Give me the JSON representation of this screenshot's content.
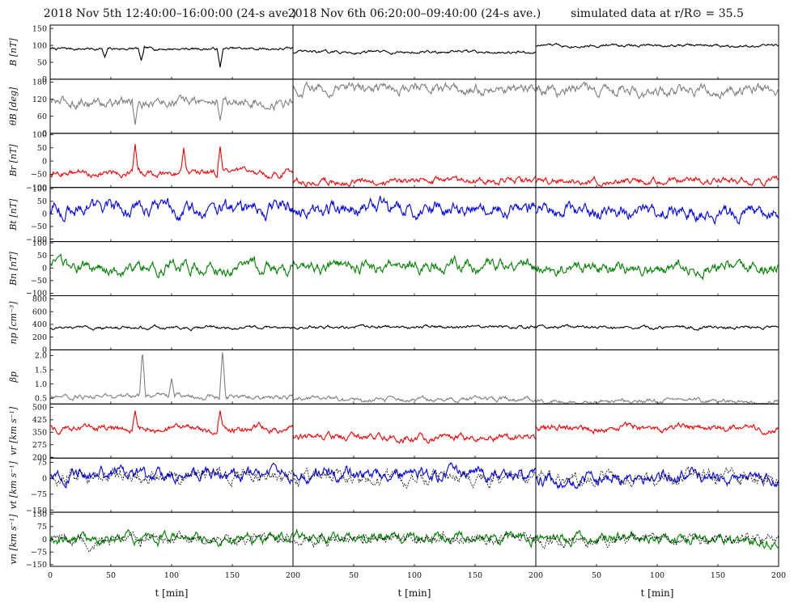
{
  "chart_data": {
    "type": "line",
    "column_titles": [
      "2018 Nov 5th 12:40:00–16:00:00 (24-s ave.)",
      "2018 Nov 6th 06:20:00–09:40:00 (24-s ave.)",
      "simulated data at r/R⊙ = 35.5"
    ],
    "xlabel": "t [min]",
    "x_ticks_first": [
      "0",
      "50",
      "100",
      "150",
      "200"
    ],
    "x_ticks_other": [
      "50",
      "100",
      "150",
      "200"
    ],
    "xlim": [
      0,
      200
    ],
    "grid": false,
    "colors": {
      "black": "#000000",
      "gray": "#808080",
      "red": "#ff0000",
      "blue": "#0000ff",
      "green": "#008000",
      "navy": "#00007f",
      "darkgreen": "#005500"
    },
    "panels": [
      {
        "name": "B",
        "ylabel": "B [nT]",
        "ylim": [
          0,
          160
        ],
        "yticks": [
          0,
          50,
          100,
          150
        ],
        "ytick_labels": [
          "0",
          "50",
          "100",
          "150"
        ],
        "series": [
          {
            "color": "#000000",
            "levels": [
              90,
              80,
              100
            ],
            "amplitude": 6,
            "spikes": [
              [
                45,
                65
              ],
              [
                75,
                55
              ],
              [
                140,
                35
              ]
            ]
          }
        ]
      },
      {
        "name": "theta_B",
        "ylabel": "θB [deg]",
        "ylim": [
          0,
          190
        ],
        "yticks": [
          0,
          60,
          120,
          180
        ],
        "ytick_labels": [
          "0",
          "60",
          "120",
          "180"
        ],
        "series": [
          {
            "color": "#808080",
            "levels": [
              110,
              155,
              150
            ],
            "amplitude": 25,
            "spikes": [
              [
                70,
                30
              ],
              [
                140,
                45
              ]
            ]
          }
        ]
      },
      {
        "name": "Br",
        "ylabel": "Br [nT]",
        "ylim": [
          -100,
          105
        ],
        "yticks": [
          -100,
          -50,
          0,
          50,
          100
        ],
        "ytick_labels": [
          "−100",
          "−50",
          "0",
          "50",
          "100"
        ],
        "series": [
          {
            "color": "#ff0000",
            "levels": [
              -45,
              -75,
              -75
            ],
            "amplitude": 18,
            "spikes": [
              [
                70,
                65
              ],
              [
                110,
                50
              ],
              [
                140,
                55
              ]
            ]
          }
        ]
      },
      {
        "name": "Bt",
        "ylabel": "Bt [nT]",
        "ylim": [
          -110,
          105
        ],
        "yticks": [
          -100,
          -50,
          0,
          50,
          100
        ],
        "ytick_labels": [
          "−100",
          "−50",
          "0",
          "50",
          "100"
        ],
        "series": [
          {
            "color": "#0000ff",
            "levels": [
              20,
              20,
              10
            ],
            "amplitude": 40,
            "spikes": []
          }
        ]
      },
      {
        "name": "Bn",
        "ylabel": "Bn [nT]",
        "ylim": [
          -110,
          105
        ],
        "yticks": [
          -100,
          -50,
          0,
          50,
          100
        ],
        "ytick_labels": [
          "−100",
          "−50",
          "0",
          "50",
          "100"
        ],
        "series": [
          {
            "color": "#008000",
            "levels": [
              0,
              5,
              0
            ],
            "amplitude": 35,
            "spikes": []
          }
        ]
      },
      {
        "name": "np",
        "ylabel": "np [cm⁻³]",
        "ylim": [
          0,
          850
        ],
        "yticks": [
          0,
          200,
          400,
          600,
          800
        ],
        "ytick_labels": [
          "0",
          "200",
          "400",
          "600",
          "800"
        ],
        "series": [
          {
            "color": "#000000",
            "levels": [
              350,
              360,
              350
            ],
            "amplitude": 35,
            "spikes": []
          }
        ]
      },
      {
        "name": "beta_p",
        "ylabel": "βp",
        "ylim": [
          0.3,
          2.2
        ],
        "yticks": [
          0.5,
          1.0,
          1.5,
          2.0
        ],
        "ytick_labels": [
          "0.5",
          "1.0",
          "1.5",
          "2.0"
        ],
        "series": [
          {
            "color": "#808080",
            "levels": [
              0.55,
              0.45,
              0.38
            ],
            "amplitude": 0.12,
            "spikes": [
              [
                76,
                2.2
              ],
              [
                142,
                2.2
              ],
              [
                100,
                1.2
              ]
            ]
          }
        ]
      },
      {
        "name": "vr",
        "ylabel": "vr [km s⁻¹]",
        "ylim": [
          195,
          520
        ],
        "yticks": [
          200,
          275,
          350,
          425,
          500
        ],
        "ytick_labels": [
          "200",
          "275",
          "350",
          "425",
          "500"
        ],
        "series": [
          {
            "color": "#ff0000",
            "levels": [
              370,
              320,
              375
            ],
            "amplitude": 30,
            "spikes": [
              [
                70,
                480
              ],
              [
                140,
                480
              ]
            ]
          }
        ]
      },
      {
        "name": "vt",
        "ylabel": "vt [km s⁻¹]",
        "ylim": [
          -160,
          95
        ],
        "yticks": [
          -150,
          -75,
          0,
          75
        ],
        "ytick_labels": [
          "−150",
          "−75",
          "0",
          "75"
        ],
        "series": [
          {
            "color": "#0000ff",
            "levels": [
              20,
              20,
              0
            ],
            "amplitude": 40,
            "spikes": []
          },
          {
            "color": "#000000",
            "dashed": true,
            "levels": [
              10,
              0,
              0
            ],
            "amplitude": 45,
            "spikes": []
          }
        ]
      },
      {
        "name": "vn",
        "ylabel": "vn [km s⁻¹]",
        "ylim": [
          -160,
          160
        ],
        "yticks": [
          -150,
          -75,
          0,
          75,
          150
        ],
        "ytick_labels": [
          "−150",
          "−75",
          "0",
          "75",
          "150"
        ],
        "series": [
          {
            "color": "#008000",
            "levels": [
              0,
              10,
              0
            ],
            "amplitude": 45,
            "spikes": []
          },
          {
            "color": "#000000",
            "dashed": true,
            "levels": [
              0,
              0,
              0
            ],
            "amplitude": 45,
            "spikes": []
          }
        ]
      }
    ]
  }
}
